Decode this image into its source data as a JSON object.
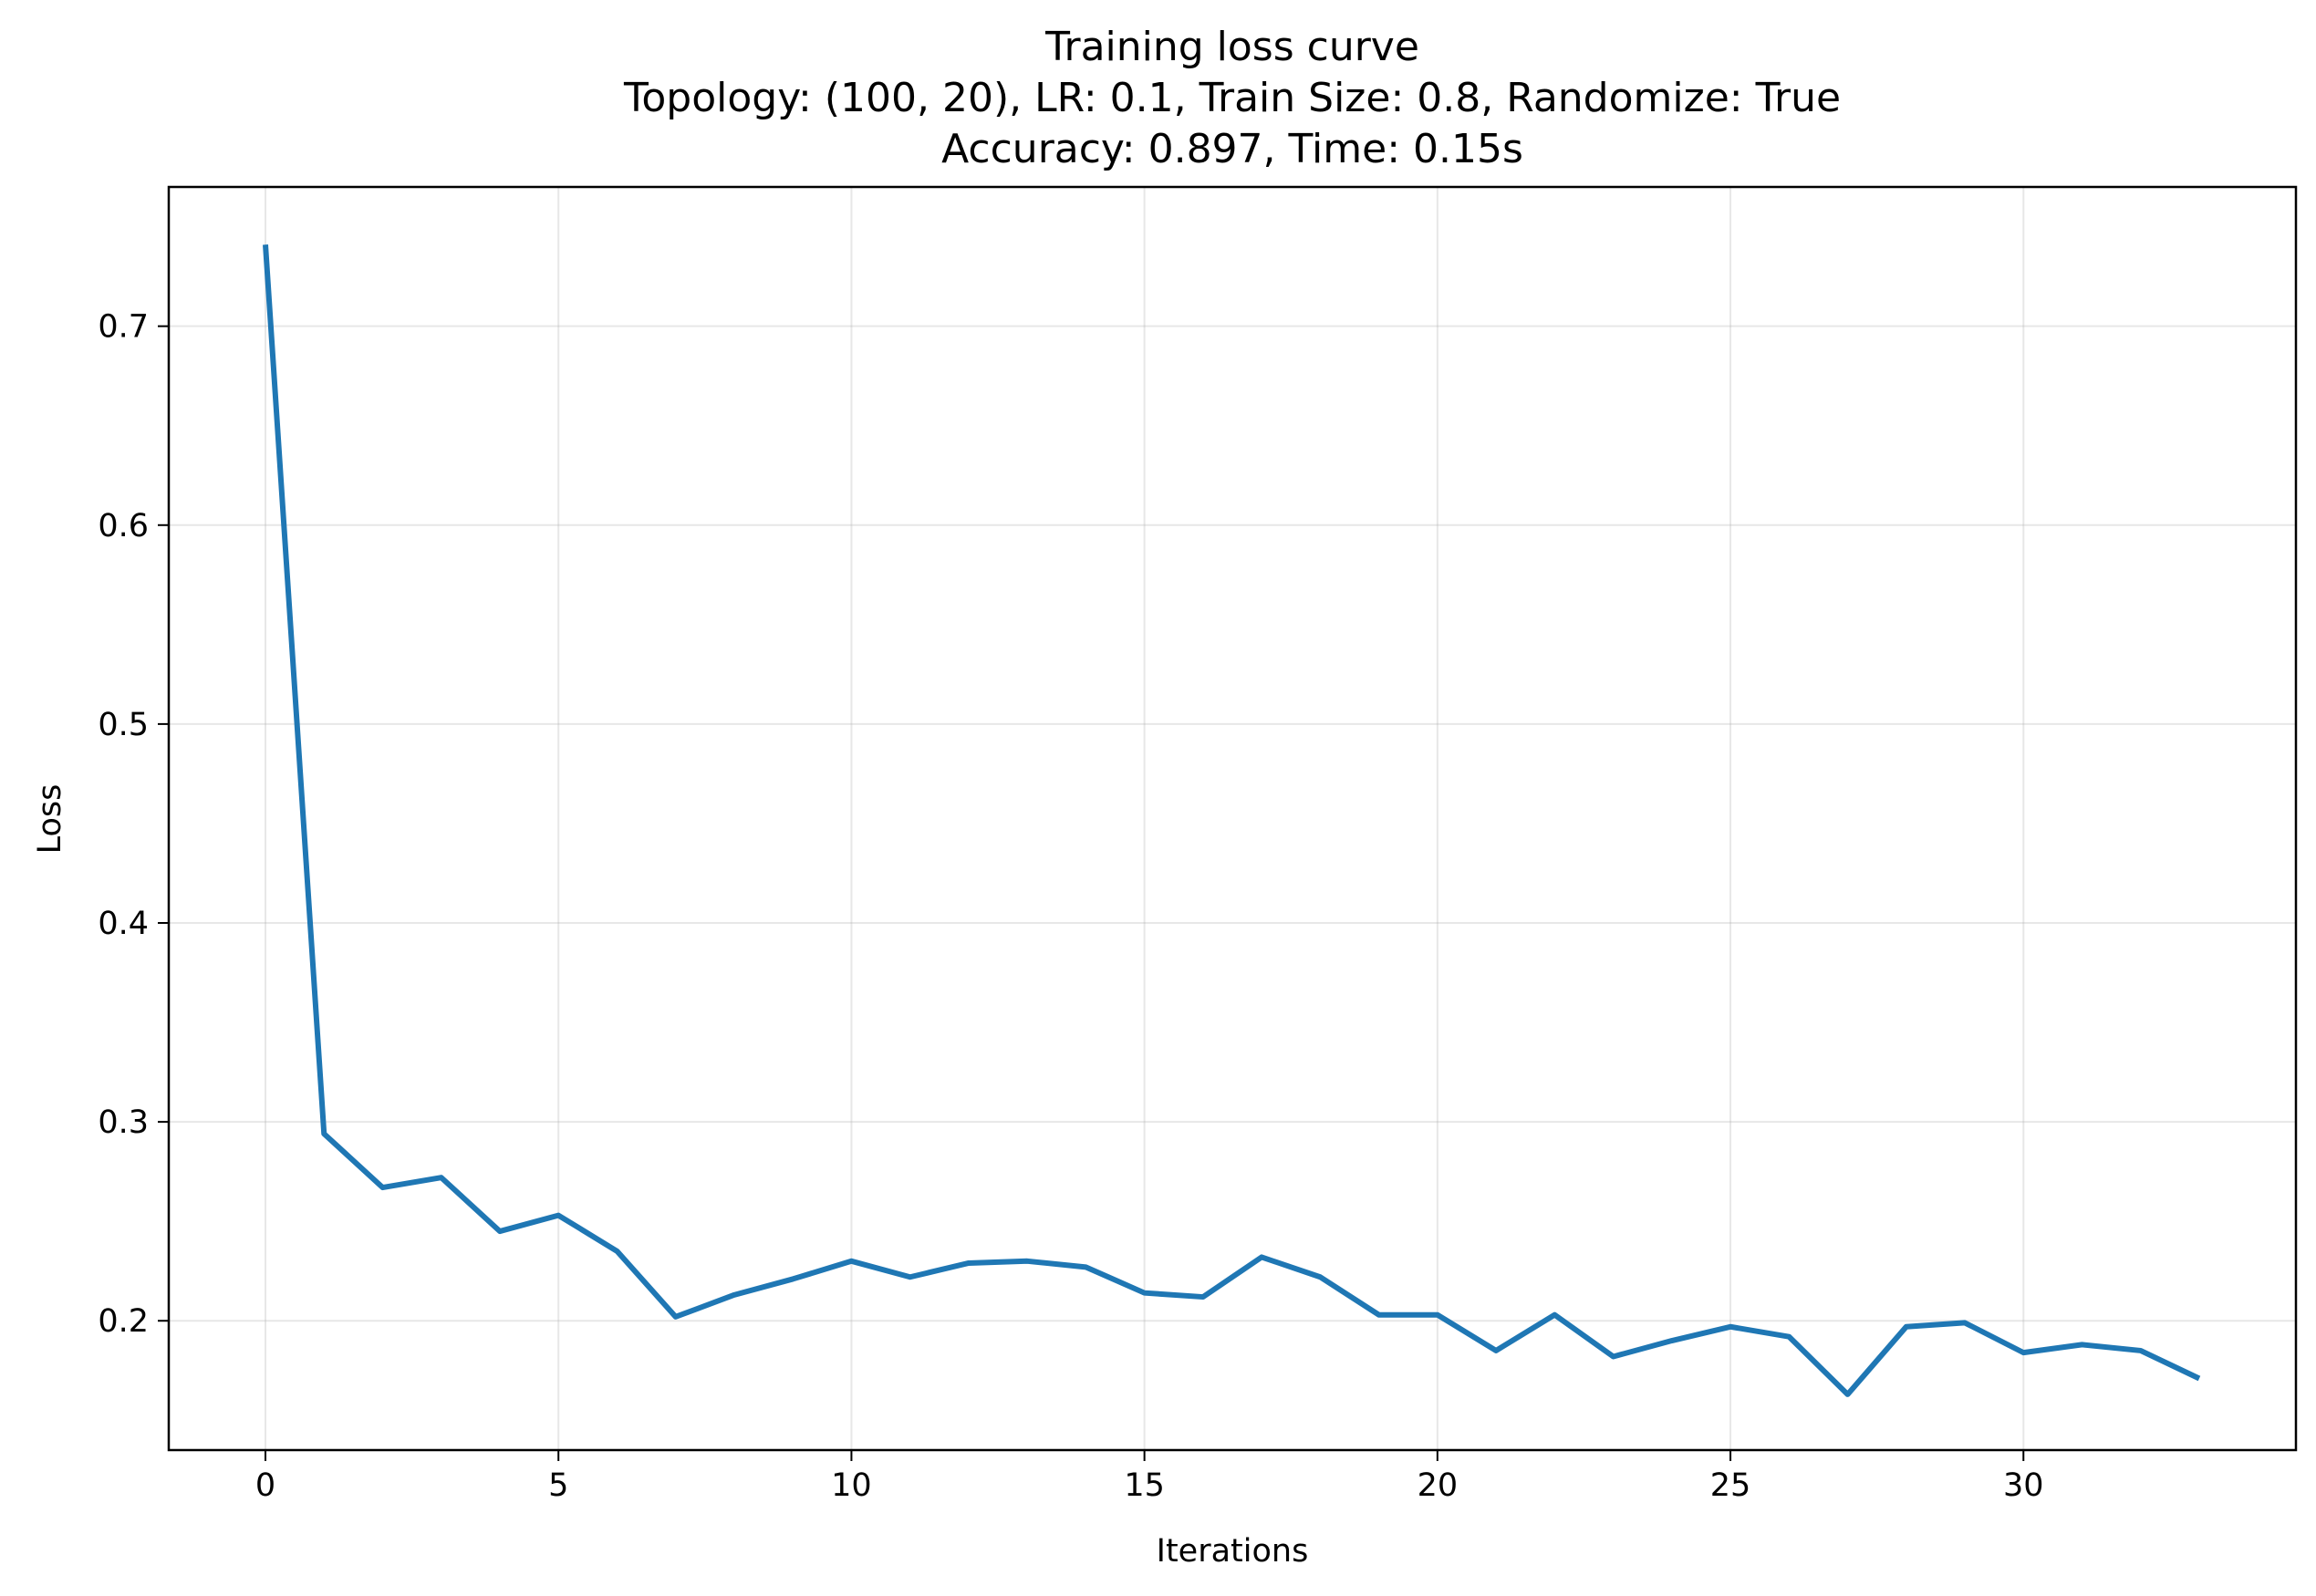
{
  "chart_data": {
    "type": "line",
    "title_lines": [
      "Training loss curve",
      "Topology: (100, 20), LR: 0.1, Train Size: 0.8, Randomize: True",
      "Accuracy: 0.897, Time: 0.15s"
    ],
    "xlabel": "Iterations",
    "ylabel": "Loss",
    "xlim": [
      -1.65,
      34.65
    ],
    "ylim": [
      0.135,
      0.77
    ],
    "xticks": [
      0,
      5,
      10,
      15,
      20,
      25,
      30
    ],
    "yticks": [
      0.2,
      0.3,
      0.4,
      0.5,
      0.6,
      0.7
    ],
    "grid": true,
    "series": [
      {
        "color": "#1f77b4",
        "x": [
          0,
          1,
          2,
          3,
          4,
          5,
          6,
          7,
          8,
          9,
          10,
          11,
          12,
          13,
          14,
          15,
          16,
          17,
          18,
          19,
          20,
          21,
          22,
          23,
          24,
          25,
          26,
          27,
          28,
          29,
          30,
          31,
          32,
          33
        ],
        "y": [
          0.741,
          0.294,
          0.267,
          0.272,
          0.245,
          0.253,
          0.235,
          0.202,
          0.213,
          0.221,
          0.23,
          0.222,
          0.229,
          0.23,
          0.227,
          0.214,
          0.212,
          0.232,
          0.222,
          0.203,
          0.203,
          0.185,
          0.203,
          0.182,
          0.19,
          0.197,
          0.192,
          0.163,
          0.197,
          0.199,
          0.184,
          0.188,
          0.185,
          0.171
        ]
      }
    ]
  }
}
